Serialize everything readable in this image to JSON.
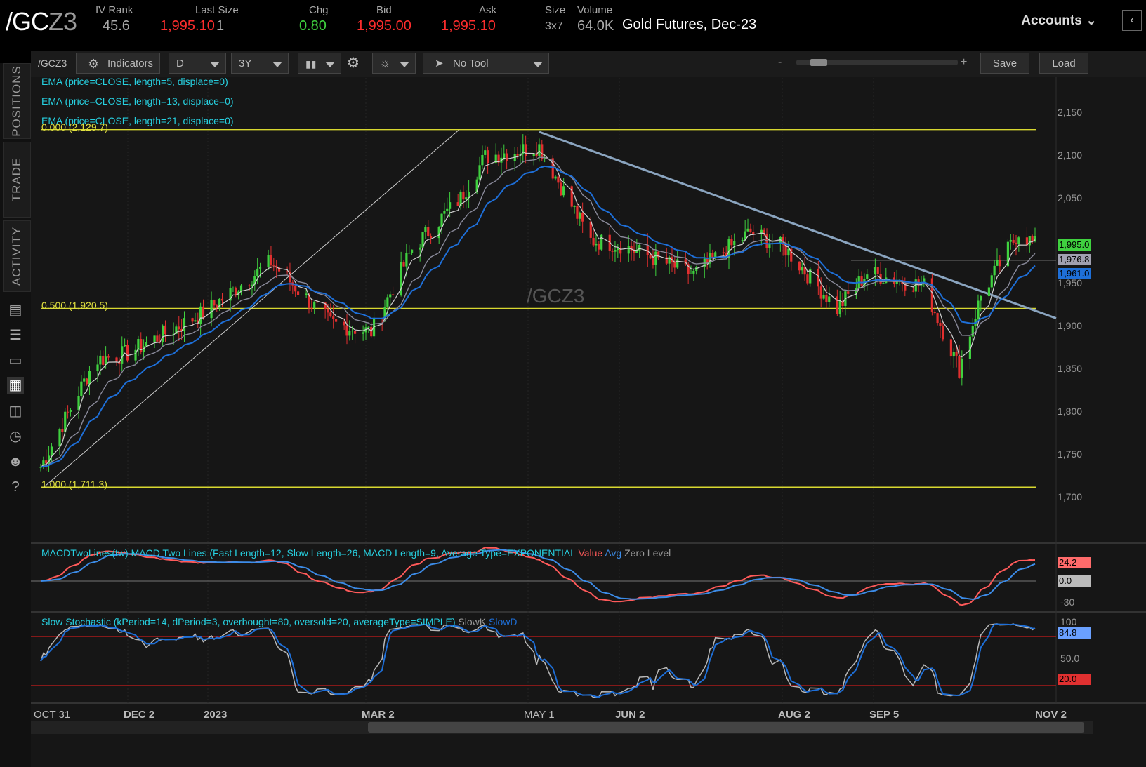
{
  "header": {
    "symbol_main": "/GC",
    "symbol_suffix": "Z3",
    "iv_rank_label": "IV Rank",
    "iv_rank": "45.6",
    "last_size_label": "Last Size",
    "last": "1,995.10",
    "size_val": "1",
    "chg_label": "Chg",
    "chg": "0.80",
    "bid_label": "Bid",
    "bid": "1,995.00",
    "ask_label": "Ask",
    "ask": "1,995.10",
    "size_label": "Size",
    "size": "3x7",
    "volume_label": "Volume",
    "volume": "64.0K",
    "description": "Gold Futures, Dec-23",
    "accounts": "Accounts"
  },
  "sidebar": {
    "tabs": [
      "POSITIONS",
      "TRADE",
      "ACTIVITY"
    ]
  },
  "toolbar": {
    "symbol": "/GCZ3",
    "indicators": "Indicators",
    "aggregation": "D",
    "timeframe": "3Y",
    "tool": "No Tool",
    "zoom_minus": "-",
    "zoom_plus": "+",
    "save": "Save",
    "load": "Load"
  },
  "studies": {
    "ema5": "EMA (price=CLOSE, length=5, displace=0)",
    "ema13": "EMA (price=CLOSE, length=13, displace=0)",
    "ema21": "EMA (price=CLOSE, length=21, displace=0)",
    "watermark": "/GCZ3",
    "macd": "MACDTwoLines(tw) MACD Two Lines (Fast Length=12, Slow Length=26, MACD Length=9, Average Type=EXPONENTIAL",
    "macd_value": "Value",
    "macd_avg": "Avg",
    "macd_zero": "Zero Level",
    "stoch": "Slow Stochastic (kPeriod=14, dPeriod=3, overbought=80, oversold=20, averageType=SIMPLE)",
    "stoch_k": "SlowK",
    "stoch_d": "SlowD"
  },
  "fib_levels": [
    {
      "label": "0.000 (2,129.7)",
      "price": 2129.7
    },
    {
      "label": "0.500 (1,920.5)",
      "price": 1920.5
    },
    {
      "label": "1.000 (1,711.3)",
      "price": 1711.3
    }
  ],
  "price_axis": [
    "2,150",
    "2,100",
    "2,050",
    "1,950",
    "1,900",
    "1,850",
    "1,800",
    "1,750",
    "1,700"
  ],
  "price_badges": [
    {
      "label": "1,995.0",
      "color": "#3fd13f"
    },
    {
      "label": "1,976.8",
      "color": "#a0a0b0"
    },
    {
      "label": "1,961.0",
      "color": "#1e6fd8"
    }
  ],
  "macd_axis": {
    "v1": "24.2",
    "v2": "0.0",
    "v3": "-30"
  },
  "stoch_axis": {
    "v1": "100",
    "v2": "84.8",
    "v3": "50.0",
    "v4": "20.0"
  },
  "dates": [
    "OCT 31",
    "DEC 2",
    "2023",
    "MAR 2",
    "MAY 1",
    "JUN 2",
    "AUG 2",
    "SEP 5",
    "NOV 2"
  ],
  "chart_data": {
    "type": "candlestick",
    "title": "/GCZ3 Gold Futures, Dec-23 Daily",
    "anchors": [
      {
        "date": "2022-10-31",
        "close": 1735
      },
      {
        "date": "2022-11-20",
        "close": 1860
      },
      {
        "date": "2022-12-02",
        "close": 1868
      },
      {
        "date": "2022-12-30",
        "close": 1915
      },
      {
        "date": "2023-01-24",
        "close": 1975
      },
      {
        "date": "2023-02-15",
        "close": 1903
      },
      {
        "date": "2023-03-02",
        "close": 1893
      },
      {
        "date": "2023-03-17",
        "close": 1990
      },
      {
        "date": "2023-04-04",
        "close": 2050
      },
      {
        "date": "2023-04-13",
        "close": 2098
      },
      {
        "date": "2023-05-03",
        "close": 2110
      },
      {
        "date": "2023-05-22",
        "close": 2000
      },
      {
        "date": "2023-06-02",
        "close": 1995
      },
      {
        "date": "2023-06-29",
        "close": 1960
      },
      {
        "date": "2023-07-20",
        "close": 2010
      },
      {
        "date": "2023-08-02",
        "close": 1990
      },
      {
        "date": "2023-08-21",
        "close": 1920
      },
      {
        "date": "2023-09-01",
        "close": 1962
      },
      {
        "date": "2023-09-22",
        "close": 1947
      },
      {
        "date": "2023-10-05",
        "close": 1850
      },
      {
        "date": "2023-10-13",
        "close": 1935
      },
      {
        "date": "2023-10-27",
        "close": 2010
      },
      {
        "date": "2023-11-02",
        "close": 1995
      }
    ],
    "ylim": [
      1650,
      2180
    ]
  }
}
